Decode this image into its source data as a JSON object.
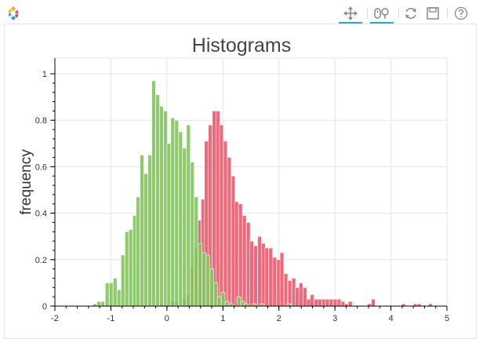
{
  "toolbar": {
    "tools": [
      "pan-tool",
      "wheel-zoom-tool",
      "reset-tool",
      "save-tool",
      "help-tool"
    ]
  },
  "chart_data": {
    "type": "bar",
    "title": "Histograms",
    "xlabel": "",
    "ylabel": "frequency",
    "xlim": [
      -2,
      5
    ],
    "ylim": [
      0,
      1
    ],
    "x_ticks": [
      "-2",
      "-1",
      "0",
      "1",
      "2",
      "3",
      "4",
      "5"
    ],
    "y_ticks": [
      "0",
      "0.2",
      "0.4",
      "0.6",
      "0.8",
      "1"
    ],
    "grid": true,
    "series": [
      {
        "color": "#ef5369",
        "bin_width": 0.0675,
        "bins": [
          [
            -0.14,
            0.01
          ],
          [
            0.07,
            0.02
          ],
          [
            0.13,
            0.02
          ],
          [
            0.27,
            0.03
          ],
          [
            0.33,
            0.05
          ],
          [
            0.4,
            0.17
          ],
          [
            0.47,
            0.25
          ],
          [
            0.54,
            0.37
          ],
          [
            0.61,
            0.46
          ],
          [
            0.67,
            0.71
          ],
          [
            0.74,
            0.78
          ],
          [
            0.81,
            0.84
          ],
          [
            0.88,
            0.84
          ],
          [
            0.94,
            0.78
          ],
          [
            1.01,
            0.71
          ],
          [
            1.08,
            0.64
          ],
          [
            1.15,
            0.56
          ],
          [
            1.21,
            0.45
          ],
          [
            1.28,
            0.44
          ],
          [
            1.35,
            0.39
          ],
          [
            1.42,
            0.36
          ],
          [
            1.48,
            0.28
          ],
          [
            1.55,
            0.26
          ],
          [
            1.62,
            0.3
          ],
          [
            1.69,
            0.27
          ],
          [
            1.75,
            0.25
          ],
          [
            1.82,
            0.25
          ],
          [
            1.89,
            0.21
          ],
          [
            1.96,
            0.2
          ],
          [
            2.02,
            0.23
          ],
          [
            2.09,
            0.14
          ],
          [
            2.16,
            0.11
          ],
          [
            2.23,
            0.12
          ],
          [
            2.29,
            0.08
          ],
          [
            2.36,
            0.1
          ],
          [
            2.43,
            0.08
          ],
          [
            2.5,
            0.03
          ],
          [
            2.56,
            0.05
          ],
          [
            2.63,
            0.03
          ],
          [
            2.7,
            0.03
          ],
          [
            2.77,
            0.03
          ],
          [
            2.83,
            0.03
          ],
          [
            2.9,
            0.03
          ],
          [
            2.97,
            0.03
          ],
          [
            3.04,
            0.03
          ],
          [
            3.11,
            0.02
          ],
          [
            3.17,
            0.01
          ],
          [
            3.24,
            0.02
          ],
          [
            3.58,
            0.01
          ],
          [
            3.65,
            0.03
          ],
          [
            4.19,
            0.01
          ],
          [
            4.4,
            0.01
          ],
          [
            4.47,
            0.01
          ],
          [
            4.67,
            0.01
          ]
        ]
      },
      {
        "color": "#7fc45a",
        "bin_width": 0.0675,
        "bins": [
          [
            -1.32,
            0.01
          ],
          [
            -1.25,
            0.02
          ],
          [
            -1.18,
            0.02
          ],
          [
            -1.1,
            0.1
          ],
          [
            -1.03,
            0.1
          ],
          [
            -0.96,
            0.12
          ],
          [
            -0.89,
            0.07
          ],
          [
            -0.82,
            0.22
          ],
          [
            -0.75,
            0.32
          ],
          [
            -0.68,
            0.33
          ],
          [
            -0.61,
            0.39
          ],
          [
            -0.55,
            0.47
          ],
          [
            -0.48,
            0.65
          ],
          [
            -0.41,
            0.57
          ],
          [
            -0.34,
            0.65
          ],
          [
            -0.27,
            0.97
          ],
          [
            -0.2,
            0.91
          ],
          [
            -0.13,
            0.86
          ],
          [
            -0.06,
            0.84
          ],
          [
            0.0,
            0.7
          ],
          [
            0.07,
            0.81
          ],
          [
            0.14,
            0.8
          ],
          [
            0.21,
            0.75
          ],
          [
            0.28,
            0.68
          ],
          [
            0.35,
            0.78
          ],
          [
            0.42,
            0.62
          ],
          [
            0.49,
            0.47
          ],
          [
            0.56,
            0.27
          ],
          [
            0.63,
            0.23
          ],
          [
            0.7,
            0.22
          ],
          [
            0.77,
            0.16
          ],
          [
            0.84,
            0.1
          ],
          [
            0.9,
            0.04
          ],
          [
            0.97,
            0.06
          ],
          [
            1.04,
            0.02
          ],
          [
            1.11,
            0.01
          ],
          [
            1.25,
            0.04
          ],
          [
            1.32,
            0.02
          ],
          [
            1.38,
            0.01
          ],
          [
            1.52,
            0.01
          ],
          [
            1.66,
            0.01
          ],
          [
            2.14,
            0.01
          ]
        ]
      }
    ]
  }
}
